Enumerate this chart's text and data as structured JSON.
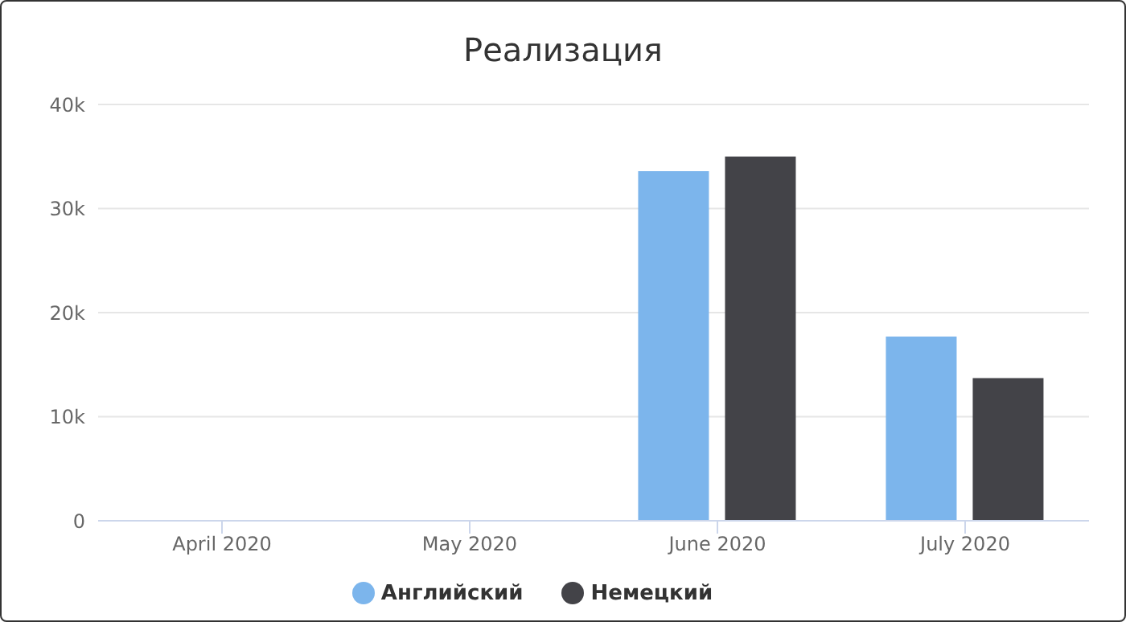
{
  "chart_data": {
    "type": "bar",
    "title": "Реализация",
    "categories": [
      "April 2020",
      "May 2020",
      "June 2020",
      "July 2020"
    ],
    "series": [
      {
        "name": "Английский",
        "color": "#7cb5ec",
        "values": [
          0,
          0,
          33600,
          17700
        ]
      },
      {
        "name": "Немецкий",
        "color": "#434348",
        "values": [
          0,
          0,
          35000,
          13700
        ]
      }
    ],
    "ylim": [
      0,
      40000
    ],
    "yticks": [
      {
        "value": 0,
        "label": "0"
      },
      {
        "value": 10000,
        "label": "10k"
      },
      {
        "value": 20000,
        "label": "20k"
      },
      {
        "value": 30000,
        "label": "30k"
      },
      {
        "value": 40000,
        "label": "40k"
      }
    ],
    "grid": "y",
    "legend": "bottom"
  }
}
